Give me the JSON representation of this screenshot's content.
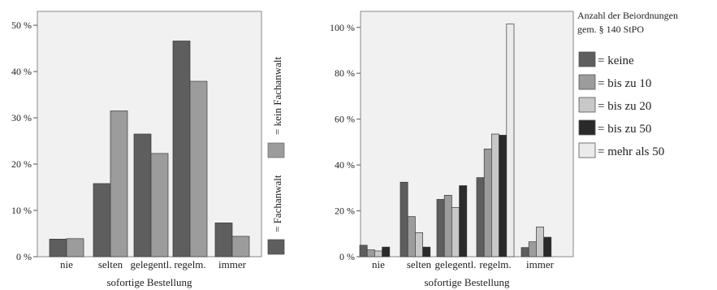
{
  "chart_data": [
    {
      "type": "bar",
      "categories": [
        "nie",
        "selten",
        "gelegentl.",
        "regelm.",
        "immer"
      ],
      "series": [
        {
          "name": "= Fachanwalt",
          "color": "#5e5e5e",
          "values": [
            3.8,
            15.8,
            26.5,
            46.6,
            7.3
          ]
        },
        {
          "name": "= kein Fachanwalt",
          "color": "#9c9c9c",
          "values": [
            3.9,
            31.5,
            22.3,
            37.9,
            4.4
          ]
        }
      ],
      "title": "",
      "xlabel": "sofortige Bestellung",
      "ylabel": "",
      "ylim": [
        0,
        53
      ],
      "yticks": [
        0,
        10,
        20,
        30,
        40,
        50
      ],
      "tick_suffix": " %",
      "grid": false,
      "legend": "right, rotated"
    },
    {
      "type": "bar",
      "categories": [
        "nie",
        "selten",
        "gelegentl.",
        "regelm.",
        "immer"
      ],
      "legend_title_lines": [
        "Anzahl der Beiordnungen",
        "gem. § 140 StPO"
      ],
      "series": [
        {
          "name": "= keine",
          "color": "#5e5e5e",
          "values": [
            5.0,
            32.5,
            25.0,
            34.5,
            4.0
          ]
        },
        {
          "name": "= bis zu 10",
          "color": "#9c9c9c",
          "values": [
            3.0,
            17.5,
            26.8,
            47.0,
            6.5
          ]
        },
        {
          "name": "= bis zu 20",
          "color": "#c8c8c8",
          "values": [
            2.5,
            10.5,
            21.5,
            53.5,
            13.0
          ]
        },
        {
          "name": "= bis zu 50",
          "color": "#2a2a2a",
          "values": [
            4.2,
            4.2,
            31.0,
            53.0,
            8.5
          ]
        },
        {
          "name": "= mehr als 50",
          "color": "#ebebeb",
          "values": [
            0,
            0,
            0,
            101.5,
            0
          ]
        }
      ],
      "title": "",
      "xlabel": "sofortige Bestellung",
      "ylabel": "",
      "ylim": [
        0,
        107
      ],
      "yticks": [
        0,
        20,
        40,
        60,
        80,
        100
      ],
      "tick_suffix": " %",
      "grid": false,
      "legend": "right"
    }
  ]
}
